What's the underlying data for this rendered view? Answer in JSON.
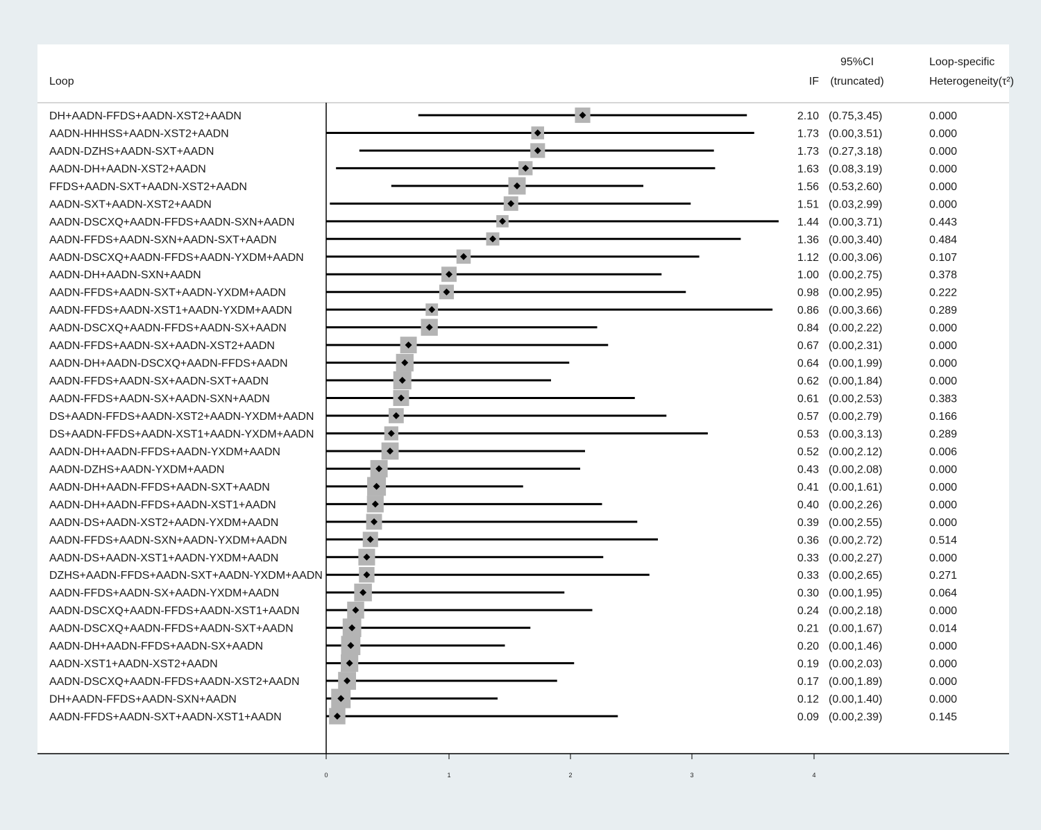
{
  "header": {
    "loop": "Loop",
    "if": "IF",
    "ci_line1": "95%CI",
    "ci_line2": "(truncated)",
    "het_line1": "Loop-specific",
    "het_line2": "Heterogeneity(τ²)"
  },
  "colors": {
    "background": "#e8eef1",
    "panel": "#ffffff",
    "box": "#b4b4b4",
    "marker": "#000000",
    "line": "#000000"
  },
  "chart_data": {
    "type": "forest",
    "xlim": [
      0,
      4
    ],
    "ticks": [
      "0",
      "1",
      "2",
      "3",
      "4"
    ],
    "rows": [
      {
        "loop": "DH+AADN-FFDS+AADN-XST2+AADN",
        "if": "2.10",
        "ci": "(0.75,3.45)",
        "het": "0.000",
        "est": 2.1,
        "lo": 0.75,
        "hi": 3.45
      },
      {
        "loop": "AADN-HHHSS+AADN-XST2+AADN",
        "if": "1.73",
        "ci": "(0.00,3.51)",
        "het": "0.000",
        "est": 1.73,
        "lo": 0.0,
        "hi": 3.51
      },
      {
        "loop": "AADN-DZHS+AADN-SXT+AADN",
        "if": "1.73",
        "ci": "(0.27,3.18)",
        "het": "0.000",
        "est": 1.73,
        "lo": 0.27,
        "hi": 3.18
      },
      {
        "loop": "AADN-DH+AADN-XST2+AADN",
        "if": "1.63",
        "ci": "(0.08,3.19)",
        "het": "0.000",
        "est": 1.63,
        "lo": 0.08,
        "hi": 3.19
      },
      {
        "loop": "FFDS+AADN-SXT+AADN-XST2+AADN",
        "if": "1.56",
        "ci": "(0.53,2.60)",
        "het": "0.000",
        "est": 1.56,
        "lo": 0.53,
        "hi": 2.6
      },
      {
        "loop": "AADN-SXT+AADN-XST2+AADN",
        "if": "1.51",
        "ci": "(0.03,2.99)",
        "het": "0.000",
        "est": 1.51,
        "lo": 0.03,
        "hi": 2.99
      },
      {
        "loop": "AADN-DSCXQ+AADN-FFDS+AADN-SXN+AADN",
        "if": "1.44",
        "ci": "(0.00,3.71)",
        "het": "0.443",
        "est": 1.44,
        "lo": 0.0,
        "hi": 3.71
      },
      {
        "loop": "AADN-FFDS+AADN-SXN+AADN-SXT+AADN",
        "if": "1.36",
        "ci": "(0.00,3.40)",
        "het": "0.484",
        "est": 1.36,
        "lo": 0.0,
        "hi": 3.4
      },
      {
        "loop": "AADN-DSCXQ+AADN-FFDS+AADN-YXDM+AADN",
        "if": "1.12",
        "ci": "(0.00,3.06)",
        "het": "0.107",
        "est": 1.12,
        "lo": 0.0,
        "hi": 3.06
      },
      {
        "loop": "AADN-DH+AADN-SXN+AADN",
        "if": "1.00",
        "ci": "(0.00,2.75)",
        "het": "0.378",
        "est": 1.0,
        "lo": 0.0,
        "hi": 2.75
      },
      {
        "loop": "AADN-FFDS+AADN-SXT+AADN-YXDM+AADN",
        "if": "0.98",
        "ci": "(0.00,2.95)",
        "het": "0.222",
        "est": 0.98,
        "lo": 0.0,
        "hi": 2.95
      },
      {
        "loop": "AADN-FFDS+AADN-XST1+AADN-YXDM+AADN",
        "if": "0.86",
        "ci": "(0.00,3.66)",
        "het": "0.289",
        "est": 0.86,
        "lo": 0.0,
        "hi": 3.66
      },
      {
        "loop": "AADN-DSCXQ+AADN-FFDS+AADN-SX+AADN",
        "if": "0.84",
        "ci": "(0.00,2.22)",
        "het": "0.000",
        "est": 0.84,
        "lo": 0.0,
        "hi": 2.22
      },
      {
        "loop": "AADN-FFDS+AADN-SX+AADN-XST2+AADN",
        "if": "0.67",
        "ci": "(0.00,2.31)",
        "het": "0.000",
        "est": 0.67,
        "lo": 0.0,
        "hi": 2.31
      },
      {
        "loop": "AADN-DH+AADN-DSCXQ+AADN-FFDS+AADN",
        "if": "0.64",
        "ci": "(0.00,1.99)",
        "het": "0.000",
        "est": 0.64,
        "lo": 0.0,
        "hi": 1.99
      },
      {
        "loop": "AADN-FFDS+AADN-SX+AADN-SXT+AADN",
        "if": "0.62",
        "ci": "(0.00,1.84)",
        "het": "0.000",
        "est": 0.62,
        "lo": 0.0,
        "hi": 1.84
      },
      {
        "loop": "AADN-FFDS+AADN-SX+AADN-SXN+AADN",
        "if": "0.61",
        "ci": "(0.00,2.53)",
        "het": "0.383",
        "est": 0.61,
        "lo": 0.0,
        "hi": 2.53
      },
      {
        "loop": "DS+AADN-FFDS+AADN-XST2+AADN-YXDM+AADN",
        "if": "0.57",
        "ci": "(0.00,2.79)",
        "het": "0.166",
        "est": 0.57,
        "lo": 0.0,
        "hi": 2.79
      },
      {
        "loop": "DS+AADN-FFDS+AADN-XST1+AADN-YXDM+AADN",
        "if": "0.53",
        "ci": "(0.00,3.13)",
        "het": "0.289",
        "est": 0.53,
        "lo": 0.0,
        "hi": 3.13
      },
      {
        "loop": "AADN-DH+AADN-FFDS+AADN-YXDM+AADN",
        "if": "0.52",
        "ci": "(0.00,2.12)",
        "het": "0.006",
        "est": 0.52,
        "lo": 0.0,
        "hi": 2.12
      },
      {
        "loop": "AADN-DZHS+AADN-YXDM+AADN",
        "if": "0.43",
        "ci": "(0.00,2.08)",
        "het": "0.000",
        "est": 0.43,
        "lo": 0.0,
        "hi": 2.08
      },
      {
        "loop": "AADN-DH+AADN-FFDS+AADN-SXT+AADN",
        "if": "0.41",
        "ci": "(0.00,1.61)",
        "het": "0.000",
        "est": 0.41,
        "lo": 0.0,
        "hi": 1.61
      },
      {
        "loop": "AADN-DH+AADN-FFDS+AADN-XST1+AADN",
        "if": "0.40",
        "ci": "(0.00,2.26)",
        "het": "0.000",
        "est": 0.4,
        "lo": 0.0,
        "hi": 2.26
      },
      {
        "loop": "AADN-DS+AADN-XST2+AADN-YXDM+AADN",
        "if": "0.39",
        "ci": "(0.00,2.55)",
        "het": "0.000",
        "est": 0.39,
        "lo": 0.0,
        "hi": 2.55
      },
      {
        "loop": "AADN-FFDS+AADN-SXN+AADN-YXDM+AADN",
        "if": "0.36",
        "ci": "(0.00,2.72)",
        "het": "0.514",
        "est": 0.36,
        "lo": 0.0,
        "hi": 2.72
      },
      {
        "loop": "AADN-DS+AADN-XST1+AADN-YXDM+AADN",
        "if": "0.33",
        "ci": "(0.00,2.27)",
        "het": "0.000",
        "est": 0.33,
        "lo": 0.0,
        "hi": 2.27
      },
      {
        "loop": "DZHS+AADN-FFDS+AADN-SXT+AADN-YXDM+AADN",
        "if": "0.33",
        "ci": "(0.00,2.65)",
        "het": "0.271",
        "est": 0.33,
        "lo": 0.0,
        "hi": 2.65
      },
      {
        "loop": "AADN-FFDS+AADN-SX+AADN-YXDM+AADN",
        "if": "0.30",
        "ci": "(0.00,1.95)",
        "het": "0.064",
        "est": 0.3,
        "lo": 0.0,
        "hi": 1.95
      },
      {
        "loop": "AADN-DSCXQ+AADN-FFDS+AADN-XST1+AADN",
        "if": "0.24",
        "ci": "(0.00,2.18)",
        "het": "0.000",
        "est": 0.24,
        "lo": 0.0,
        "hi": 2.18
      },
      {
        "loop": "AADN-DSCXQ+AADN-FFDS+AADN-SXT+AADN",
        "if": "0.21",
        "ci": "(0.00,1.67)",
        "het": "0.014",
        "est": 0.21,
        "lo": 0.0,
        "hi": 1.67
      },
      {
        "loop": "AADN-DH+AADN-FFDS+AADN-SX+AADN",
        "if": "0.20",
        "ci": "(0.00,1.46)",
        "het": "0.000",
        "est": 0.2,
        "lo": 0.0,
        "hi": 1.46
      },
      {
        "loop": "AADN-XST1+AADN-XST2+AADN",
        "if": "0.19",
        "ci": "(0.00,2.03)",
        "het": "0.000",
        "est": 0.19,
        "lo": 0.0,
        "hi": 2.03
      },
      {
        "loop": "AADN-DSCXQ+AADN-FFDS+AADN-XST2+AADN",
        "if": "0.17",
        "ci": "(0.00,1.89)",
        "het": "0.000",
        "est": 0.17,
        "lo": 0.0,
        "hi": 1.89
      },
      {
        "loop": "DH+AADN-FFDS+AADN-SXN+AADN",
        "if": "0.12",
        "ci": "(0.00,1.40)",
        "het": "0.000",
        "est": 0.12,
        "lo": 0.0,
        "hi": 1.4
      },
      {
        "loop": "AADN-FFDS+AADN-SXT+AADN-XST1+AADN",
        "if": "0.09",
        "ci": "(0.00,2.39)",
        "het": "0.145",
        "est": 0.09,
        "lo": 0.0,
        "hi": 2.39
      }
    ]
  }
}
